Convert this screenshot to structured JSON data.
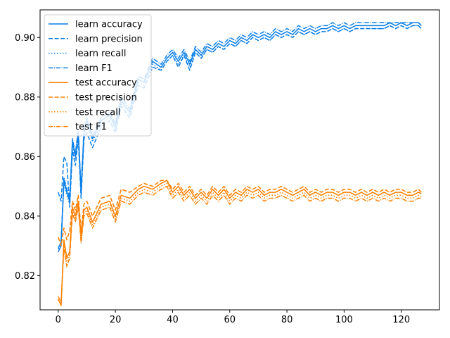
{
  "chart_data": {
    "type": "line",
    "title": "",
    "xlabel": "",
    "ylabel": "",
    "xlim": [
      -6.35,
      133.35
    ],
    "ylim": [
      0.8085,
      0.9093
    ],
    "xticks": [
      0,
      20,
      40,
      60,
      80,
      100,
      120
    ],
    "yticks": [
      0.82,
      0.84,
      0.86,
      0.88,
      0.9
    ],
    "ytick_labels": [
      "0.82",
      "0.84",
      "0.86",
      "0.88",
      "0.90"
    ],
    "grid": false,
    "legend_position": "upper-left",
    "colors": {
      "learn": "#1f77b4",
      "test": "#ff7f0e",
      "learn_drawn": "#0a7fe8",
      "test_drawn": "#ff8000"
    },
    "x": [
      0,
      1,
      2,
      3,
      4,
      5,
      6,
      7,
      8,
      9,
      10,
      12,
      15,
      18,
      20,
      22,
      25,
      28,
      30,
      33,
      36,
      38,
      40,
      42,
      44,
      46,
      48,
      50,
      52,
      54,
      56,
      58,
      60,
      62,
      64,
      66,
      68,
      70,
      72,
      74,
      76,
      78,
      80,
      82,
      84,
      86,
      88,
      90,
      92,
      94,
      96,
      98,
      100,
      102,
      104,
      106,
      108,
      110,
      112,
      114,
      116,
      118,
      120,
      122,
      124,
      126,
      127
    ],
    "series": [
      {
        "name": "learn accuracy",
        "group": "learn",
        "dash": "solid",
        "values": [
          0.828,
          0.83,
          0.852,
          0.848,
          0.845,
          0.865,
          0.86,
          0.868,
          0.848,
          0.868,
          0.872,
          0.866,
          0.872,
          0.874,
          0.87,
          0.879,
          0.875,
          0.886,
          0.885,
          0.892,
          0.89,
          0.893,
          0.895,
          0.892,
          0.895,
          0.891,
          0.896,
          0.894,
          0.897,
          0.896,
          0.898,
          0.897,
          0.899,
          0.898,
          0.9,
          0.899,
          0.901,
          0.9,
          0.901,
          0.9,
          0.902,
          0.901,
          0.902,
          0.901,
          0.903,
          0.902,
          0.903,
          0.902,
          0.903,
          0.903,
          0.904,
          0.903,
          0.904,
          0.903,
          0.904,
          0.904,
          0.904,
          0.904,
          0.904,
          0.904,
          0.905,
          0.904,
          0.905,
          0.904,
          0.905,
          0.905,
          0.904
        ]
      },
      {
        "name": "learn precision",
        "group": "learn",
        "dash": "dashed",
        "values": [
          0.848,
          0.845,
          0.86,
          0.858,
          0.843,
          0.862,
          0.857,
          0.866,
          0.846,
          0.866,
          0.868,
          0.863,
          0.87,
          0.872,
          0.868,
          0.877,
          0.873,
          0.884,
          0.883,
          0.89,
          0.889,
          0.892,
          0.894,
          0.89,
          0.894,
          0.889,
          0.895,
          0.893,
          0.896,
          0.895,
          0.897,
          0.896,
          0.898,
          0.897,
          0.899,
          0.898,
          0.9,
          0.899,
          0.9,
          0.899,
          0.901,
          0.9,
          0.901,
          0.9,
          0.902,
          0.901,
          0.902,
          0.901,
          0.902,
          0.902,
          0.903,
          0.902,
          0.903,
          0.902,
          0.903,
          0.903,
          0.903,
          0.903,
          0.903,
          0.903,
          0.904,
          0.903,
          0.904,
          0.903,
          0.904,
          0.904,
          0.903
        ]
      },
      {
        "name": "learn recall",
        "group": "learn",
        "dash": "dotted",
        "values": [
          0.828,
          0.831,
          0.851,
          0.847,
          0.844,
          0.864,
          0.859,
          0.867,
          0.847,
          0.867,
          0.871,
          0.865,
          0.871,
          0.873,
          0.869,
          0.878,
          0.874,
          0.885,
          0.884,
          0.891,
          0.889,
          0.892,
          0.894,
          0.891,
          0.894,
          0.89,
          0.895,
          0.893,
          0.896,
          0.895,
          0.897,
          0.896,
          0.898,
          0.897,
          0.899,
          0.898,
          0.9,
          0.899,
          0.9,
          0.899,
          0.901,
          0.9,
          0.901,
          0.9,
          0.902,
          0.901,
          0.902,
          0.901,
          0.902,
          0.902,
          0.903,
          0.902,
          0.903,
          0.902,
          0.903,
          0.903,
          0.903,
          0.903,
          0.903,
          0.903,
          0.904,
          0.903,
          0.904,
          0.903,
          0.904,
          0.904,
          0.903
        ]
      },
      {
        "name": "learn F1",
        "group": "learn",
        "dash": "dashdot",
        "values": [
          0.829,
          0.832,
          0.853,
          0.849,
          0.846,
          0.866,
          0.861,
          0.869,
          0.849,
          0.869,
          0.873,
          0.867,
          0.873,
          0.875,
          0.871,
          0.88,
          0.876,
          0.887,
          0.886,
          0.893,
          0.891,
          0.894,
          0.896,
          0.893,
          0.896,
          0.892,
          0.897,
          0.895,
          0.898,
          0.897,
          0.899,
          0.898,
          0.9,
          0.899,
          0.901,
          0.9,
          0.902,
          0.901,
          0.902,
          0.901,
          0.903,
          0.902,
          0.903,
          0.902,
          0.904,
          0.903,
          0.904,
          0.903,
          0.904,
          0.904,
          0.905,
          0.904,
          0.905,
          0.904,
          0.905,
          0.905,
          0.905,
          0.905,
          0.905,
          0.905,
          0.905,
          0.905,
          0.905,
          0.905,
          0.905,
          0.905,
          0.904
        ]
      },
      {
        "name": "test accuracy",
        "group": "test",
        "dash": "solid",
        "values": [
          0.812,
          0.81,
          0.832,
          0.826,
          0.828,
          0.843,
          0.84,
          0.845,
          0.833,
          0.842,
          0.843,
          0.838,
          0.844,
          0.845,
          0.84,
          0.847,
          0.846,
          0.849,
          0.85,
          0.849,
          0.851,
          0.852,
          0.848,
          0.85,
          0.847,
          0.849,
          0.846,
          0.848,
          0.846,
          0.849,
          0.847,
          0.849,
          0.846,
          0.848,
          0.847,
          0.849,
          0.848,
          0.849,
          0.847,
          0.848,
          0.848,
          0.849,
          0.848,
          0.847,
          0.848,
          0.849,
          0.847,
          0.848,
          0.847,
          0.848,
          0.848,
          0.847,
          0.848,
          0.848,
          0.847,
          0.848,
          0.847,
          0.848,
          0.847,
          0.848,
          0.847,
          0.848,
          0.848,
          0.847,
          0.847,
          0.848,
          0.8475
        ]
      },
      {
        "name": "test precision",
        "group": "test",
        "dash": "dashed",
        "values": [
          0.833,
          0.83,
          0.836,
          0.832,
          0.835,
          0.845,
          0.842,
          0.847,
          0.835,
          0.844,
          0.845,
          0.84,
          0.846,
          0.847,
          0.842,
          0.849,
          0.848,
          0.85,
          0.851,
          0.85,
          0.852,
          0.852,
          0.849,
          0.851,
          0.848,
          0.85,
          0.847,
          0.849,
          0.847,
          0.85,
          0.848,
          0.85,
          0.847,
          0.849,
          0.848,
          0.85,
          0.849,
          0.85,
          0.848,
          0.849,
          0.849,
          0.85,
          0.849,
          0.848,
          0.849,
          0.85,
          0.848,
          0.849,
          0.848,
          0.849,
          0.849,
          0.848,
          0.849,
          0.849,
          0.848,
          0.849,
          0.848,
          0.849,
          0.848,
          0.849,
          0.848,
          0.849,
          0.849,
          0.848,
          0.848,
          0.849,
          0.848
        ]
      },
      {
        "name": "test recall",
        "group": "test",
        "dash": "dotted",
        "values": [
          0.812,
          0.81,
          0.831,
          0.825,
          0.827,
          0.842,
          0.839,
          0.844,
          0.832,
          0.841,
          0.842,
          0.837,
          0.843,
          0.844,
          0.839,
          0.846,
          0.845,
          0.848,
          0.849,
          0.848,
          0.85,
          0.851,
          0.847,
          0.849,
          0.846,
          0.848,
          0.845,
          0.847,
          0.845,
          0.848,
          0.846,
          0.848,
          0.845,
          0.847,
          0.846,
          0.848,
          0.847,
          0.848,
          0.846,
          0.847,
          0.847,
          0.848,
          0.847,
          0.846,
          0.847,
          0.848,
          0.846,
          0.847,
          0.846,
          0.847,
          0.847,
          0.846,
          0.847,
          0.847,
          0.846,
          0.847,
          0.846,
          0.847,
          0.846,
          0.847,
          0.846,
          0.847,
          0.847,
          0.846,
          0.846,
          0.847,
          0.8465
        ]
      },
      {
        "name": "test F1",
        "group": "test",
        "dash": "dashdot",
        "values": [
          0.813,
          0.811,
          0.829,
          0.823,
          0.826,
          0.841,
          0.838,
          0.843,
          0.831,
          0.84,
          0.841,
          0.836,
          0.842,
          0.843,
          0.838,
          0.845,
          0.844,
          0.847,
          0.848,
          0.847,
          0.849,
          0.85,
          0.846,
          0.848,
          0.845,
          0.847,
          0.844,
          0.846,
          0.844,
          0.847,
          0.845,
          0.847,
          0.844,
          0.846,
          0.845,
          0.847,
          0.846,
          0.847,
          0.845,
          0.846,
          0.846,
          0.847,
          0.846,
          0.845,
          0.846,
          0.847,
          0.845,
          0.846,
          0.845,
          0.846,
          0.846,
          0.845,
          0.846,
          0.846,
          0.845,
          0.846,
          0.845,
          0.846,
          0.845,
          0.846,
          0.845,
          0.846,
          0.846,
          0.845,
          0.845,
          0.846,
          0.846
        ]
      }
    ]
  }
}
